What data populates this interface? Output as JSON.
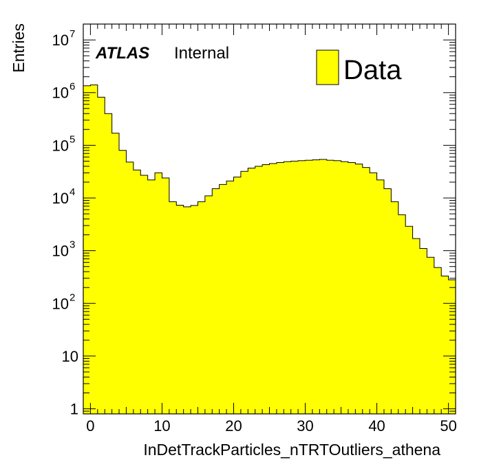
{
  "chart_data": {
    "type": "bar",
    "histogram": true,
    "xlabel": "InDetTrackParticles_nTRTOutliers_athena",
    "ylabel": "Entries",
    "x_range": [
      -1,
      51
    ],
    "y_range": [
      0.8,
      20000000
    ],
    "y_scale": "log",
    "x_ticks": [
      "0",
      "10",
      "20",
      "30",
      "40",
      "50"
    ],
    "y_ticks": [
      {
        "base": "1",
        "exp": ""
      },
      {
        "base": "10",
        "exp": ""
      },
      {
        "base": "10",
        "exp": "2"
      },
      {
        "base": "10",
        "exp": "3"
      },
      {
        "base": "10",
        "exp": "4"
      },
      {
        "base": "10",
        "exp": "5"
      },
      {
        "base": "10",
        "exp": "6"
      },
      {
        "base": "10",
        "exp": "7"
      }
    ],
    "series": [
      {
        "name": "Data",
        "bin_width": 1,
        "x": [
          -1,
          0,
          1,
          2,
          3,
          4,
          5,
          6,
          7,
          8,
          9,
          10,
          11,
          12,
          13,
          14,
          15,
          16,
          17,
          18,
          19,
          20,
          21,
          22,
          23,
          24,
          25,
          26,
          27,
          28,
          29,
          30,
          31,
          32,
          33,
          34,
          35,
          36,
          37,
          38,
          39,
          40,
          41,
          42,
          43,
          44,
          45,
          46,
          47,
          48,
          49,
          50
        ],
        "values": [
          1350000,
          1400000,
          820000,
          400000,
          170000,
          80000,
          48000,
          34000,
          27000,
          22000,
          30000,
          24000,
          8500,
          7300,
          6800,
          7200,
          8500,
          11000,
          15000,
          18000,
          21000,
          25000,
          32000,
          37000,
          40000,
          43000,
          45000,
          47000,
          49000,
          50000,
          51000,
          52000,
          53000,
          54000,
          52000,
          51000,
          49000,
          47000,
          44000,
          38000,
          30000,
          22000,
          15000,
          8500,
          4800,
          2900,
          1700,
          1100,
          750,
          480,
          330,
          280
        ],
        "color": "#ffff00"
      }
    ],
    "annotations": {
      "experiment": "ATLAS",
      "status": "Internal"
    },
    "legend": {
      "label": "Data",
      "placement": "top-right",
      "color": "#ffff00"
    },
    "grid": false
  }
}
